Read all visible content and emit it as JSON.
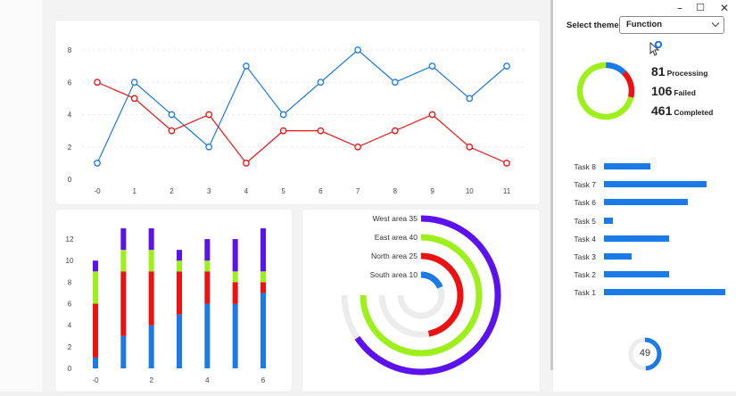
{
  "window": {
    "minimize": "–",
    "maximize": "☐",
    "close": "✕"
  },
  "theme": {
    "label": "Select theme",
    "selected": "Function"
  },
  "summary": {
    "processing": {
      "value": "81",
      "label": "Processing"
    },
    "failed": {
      "value": "106",
      "label": "Failed"
    },
    "completed": {
      "value": "461",
      "label": "Completed"
    },
    "ring_segments": [
      {
        "name": "Processing",
        "value": 81,
        "color": "#1a7ae8"
      },
      {
        "name": "Failed",
        "value": 106,
        "color": "#ee1111"
      },
      {
        "name": "Completed",
        "value": 461,
        "color": "#9ef01a"
      }
    ]
  },
  "gauge": {
    "value": "49",
    "percent": 49,
    "color": "#1a7ae8"
  },
  "chart_data": [
    {
      "type": "line",
      "x": [
        "-0",
        "1",
        "2",
        "3",
        "4",
        "5",
        "6",
        "7",
        "8",
        "9",
        "10",
        "11"
      ],
      "ylim": [
        0,
        8
      ],
      "yticks": [
        "0",
        "2",
        "4",
        "6",
        "8"
      ],
      "grid": true,
      "series": [
        {
          "values": [
            1,
            6,
            4,
            2,
            7,
            4,
            6,
            8,
            6,
            7,
            5,
            7
          ],
          "color": "#1a7ae8"
        },
        {
          "values": [
            6,
            5,
            3,
            4,
            1,
            3,
            3,
            2,
            3,
            4,
            2,
            1
          ],
          "color": "#ee1111"
        }
      ]
    },
    {
      "type": "bar",
      "stacked": true,
      "x": [
        "-0",
        "1",
        "2",
        "3",
        "4",
        "5",
        "6"
      ],
      "xticks": [
        "-0",
        "",
        "2",
        "",
        "4",
        "",
        "6"
      ],
      "ylim": [
        0,
        13
      ],
      "yticks": [
        "0",
        "2",
        "4",
        "6",
        "8",
        "10",
        "12"
      ],
      "series": [
        {
          "values": [
            1,
            3,
            4,
            5,
            6,
            6,
            7
          ],
          "color": "#1a7ae8"
        },
        {
          "values": [
            5,
            6,
            5,
            4,
            3,
            2,
            1
          ],
          "color": "#ee1111"
        },
        {
          "values": [
            3,
            2,
            2,
            1,
            1,
            1,
            1
          ],
          "color": "#9ef01a"
        },
        {
          "values": [
            1,
            2,
            2,
            1,
            2,
            3,
            4
          ],
          "color": "#5b12ee"
        }
      ]
    },
    {
      "type": "radial-bar",
      "max": 40,
      "bars": [
        {
          "label": "West area",
          "value": 35,
          "color": "#5b12ee"
        },
        {
          "label": "East area",
          "value": 40,
          "color": "#9ef01a"
        },
        {
          "label": "North area",
          "value": 25,
          "color": "#ee1111"
        },
        {
          "label": "South area",
          "value": 10,
          "color": "#1a7ae8"
        }
      ]
    }
  ],
  "tasks": {
    "max": 13,
    "items": [
      {
        "label": "Task 8",
        "value": 5
      },
      {
        "label": "Task 7",
        "value": 11
      },
      {
        "label": "Task 6",
        "value": 9
      },
      {
        "label": "Task 5",
        "value": 1
      },
      {
        "label": "Task 4",
        "value": 7
      },
      {
        "label": "Task 3",
        "value": 3
      },
      {
        "label": "Task 2",
        "value": 7
      },
      {
        "label": "Task 1",
        "value": 13
      }
    ]
  }
}
